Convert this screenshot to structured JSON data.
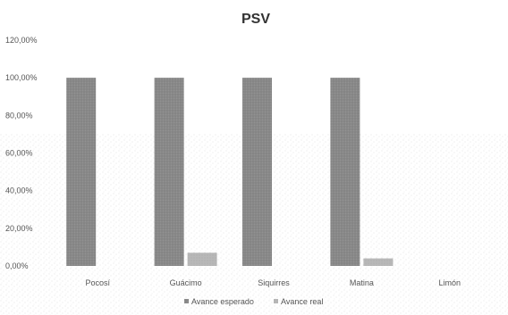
{
  "chart_data": {
    "type": "bar",
    "title": "PSV",
    "categories": [
      "Pocosí",
      "Guácimo",
      "Siquirres",
      "Matina",
      "Limón"
    ],
    "series": [
      {
        "name": "Avance esperado",
        "values": [
          100,
          100,
          100,
          100,
          0
        ],
        "color": "#7f7f7f"
      },
      {
        "name": "Avance real",
        "values": [
          0,
          7,
          0,
          4,
          0
        ],
        "color": "#bfbfbf"
      }
    ],
    "y_ticks": [
      "0,00%",
      "20,00%",
      "40,00%",
      "60,00%",
      "80,00%",
      "100,00%",
      "120,00%"
    ],
    "ylim": [
      0,
      120
    ],
    "grid": false,
    "legend_position": "bottom",
    "xlabel": "",
    "ylabel": ""
  }
}
